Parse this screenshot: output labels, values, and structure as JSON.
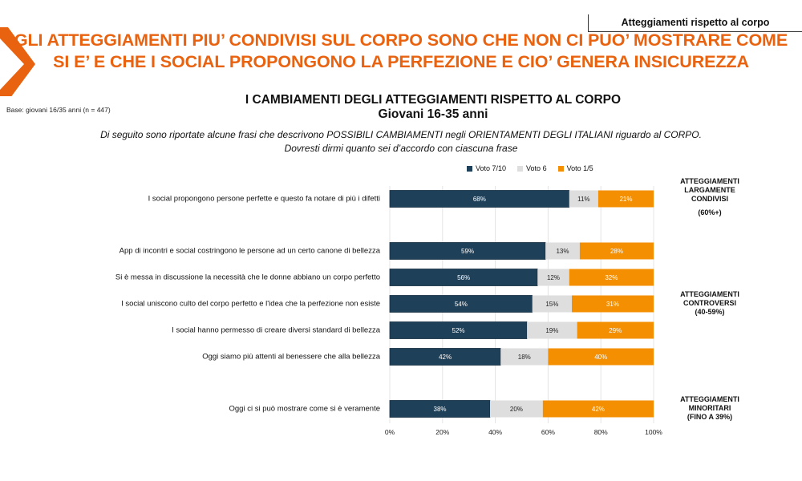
{
  "tag_label": "Atteggiamenti rispetto al corpo",
  "headline": [
    "GLI ATTEGGIAMENTI PIU’ CONDIVISI SUL CORPO  SONO CHE NON CI PUO’  MOSTRARE COME",
    "SI E’ E CHE I SOCIAL PROPONGONO LA PERFEZIONE E CIO’ GENERA INSICUREZZA"
  ],
  "base_note": "Base: giovani 16/35 anni (n = 447)",
  "question": [
    "Di seguito sono riportate alcune frasi che descrivono POSSIBILI CAMBIAMENTI negli ORIENTAMENTI DEGLI ITALIANI riguardo al CORPO.",
    "Dovresti dirmi quanto sei d’accordo con ciascuna frase"
  ],
  "side_labels": [
    {
      "lines": [
        "ATTEGGIAMENTI",
        "LARGAMENTE",
        "CONDIVISI"
      ],
      "range": "(60%+)"
    },
    {
      "lines": [
        "ATTEGGIAMENTI",
        "CONTROVERSI"
      ],
      "range": "(40-59%)"
    },
    {
      "lines": [
        "ATTEGGIAMENTI",
        "MINORITARI"
      ],
      "range": "(FINO A 39%)"
    }
  ],
  "chart_data": {
    "type": "bar",
    "orientation": "horizontal-stacked-100",
    "title": "I CAMBIAMENTI DEGLI ATTEGGIAMENTI RISPETTO AL CORPO",
    "subtitle": "Giovani 16-35 anni",
    "xlabel": "",
    "ylabel": "",
    "xlim": [
      0,
      100
    ],
    "x_ticks": [
      "0%",
      "20%",
      "40%",
      "60%",
      "80%",
      "100%"
    ],
    "grid": true,
    "legend_position": "top-right",
    "categories": [
      "I social propongono persone perfette e questo fa notare di più i difetti",
      "App di incontri e social costringono le persone ad un certo canone di bellezza",
      "Si è messa in discussione la necessità che le donne abbiano un corpo perfetto",
      "I social uniscono culto del corpo perfetto e l'idea che la perfezione non esiste",
      "I social hanno permesso di creare diversi standard di bellezza",
      "Oggi siamo più attenti al benessere che alla bellezza",
      "Oggi ci si può mostrare come si è veramente"
    ],
    "series": [
      {
        "name": "Voto 7/10",
        "color": "#1f4059",
        "label_color": "#ffffff",
        "values": [
          68,
          59,
          56,
          54,
          52,
          42,
          38
        ]
      },
      {
        "name": "Voto 6",
        "color": "#dedede",
        "label_color": "#222222",
        "values": [
          11,
          13,
          12,
          15,
          19,
          18,
          20
        ]
      },
      {
        "name": "Voto 1/5",
        "color": "#f38f00",
        "label_color": "#ffffff",
        "values": [
          21,
          28,
          32,
          31,
          29,
          40,
          42
        ]
      }
    ]
  },
  "colors": {
    "accent": "#e8620f"
  }
}
